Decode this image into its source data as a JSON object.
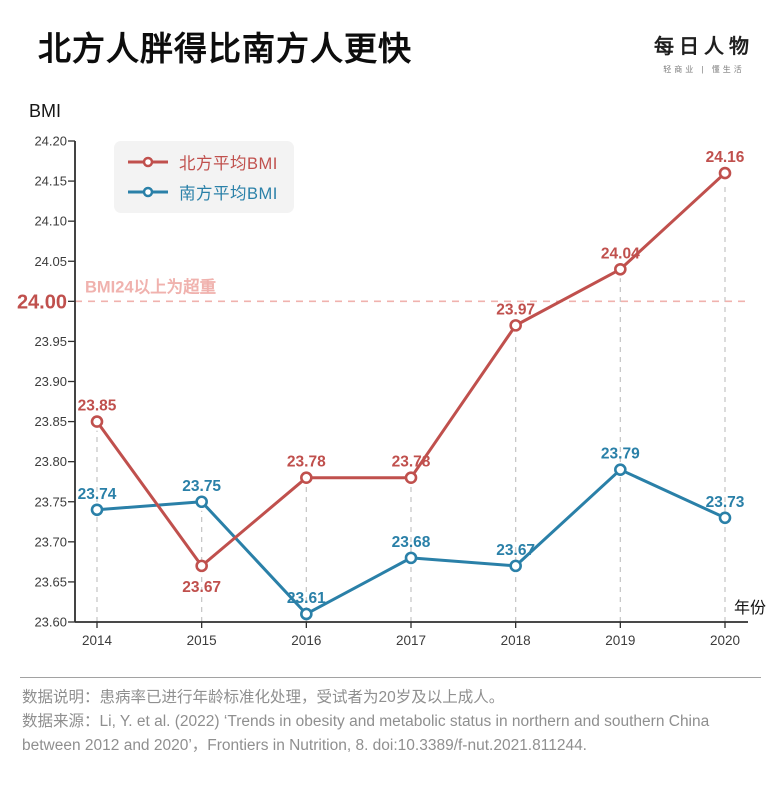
{
  "header": {
    "title": "北方人胖得比南方人更快",
    "logo": {
      "name": "每日人物",
      "tagline": "轻商业 | 懂生活"
    }
  },
  "chart_data": {
    "type": "line",
    "title": "北方人胖得比南方人更快",
    "xlabel": "年份",
    "ylabel": "BMI",
    "x": [
      "2014",
      "2015",
      "2016",
      "2017",
      "2018",
      "2019",
      "2020"
    ],
    "ylim": [
      23.6,
      24.2
    ],
    "yticks": [
      "23.60",
      "23.65",
      "23.70",
      "23.75",
      "23.80",
      "23.85",
      "23.90",
      "23.95",
      "24.00",
      "24.05",
      "24.10",
      "24.15",
      "24.20"
    ],
    "highlight_ytick": "24.00",
    "grid": "vertical dashed line per year, up to highest data point",
    "legend_position": "top-left inside plot",
    "series": [
      {
        "name": "北方平均BMI",
        "color": "#c0504d",
        "values": [
          23.85,
          23.67,
          23.78,
          23.78,
          23.97,
          24.04,
          24.16
        ],
        "labels": [
          "23.85",
          "23.67",
          "23.78",
          "23.78",
          "23.97",
          "24.04",
          "24.16"
        ],
        "label_placement": [
          "above",
          "below",
          "above",
          "above",
          "above",
          "above",
          "above"
        ]
      },
      {
        "name": "南方平均BMI",
        "color": "#2a80a8",
        "values": [
          23.74,
          23.75,
          23.61,
          23.68,
          23.67,
          23.79,
          23.73
        ],
        "labels": [
          "23.74",
          "23.75",
          "23.61",
          "23.68",
          "23.67",
          "23.79",
          "23.73"
        ],
        "label_placement": [
          "above",
          "above",
          "above",
          "above",
          "above",
          "above",
          "above"
        ]
      }
    ],
    "threshold": {
      "value": 24.0,
      "label": "BMI24以上为超重",
      "color": "#f0b2ae"
    }
  },
  "footer": {
    "note": "数据说明：患病率已进行年龄标准化处理，受试者为20岁及以上成人。",
    "source": "数据来源：Li, Y. et al. (2022) ‘Trends in obesity and metabolic status in northern and southern China between 2012 and 2020’，Frontiers in Nutrition, 8. doi:10.3389/f-nut.2021.811244."
  },
  "colors": {
    "north_line": "#c0504d",
    "south_line": "#2a80a8",
    "threshold_pink": "#f0b2ae",
    "gridline": "#c8c8c8",
    "axis": "#2f2f2f",
    "tick_text": "#3c3c3c",
    "footer_text": "#8f8f8f"
  }
}
